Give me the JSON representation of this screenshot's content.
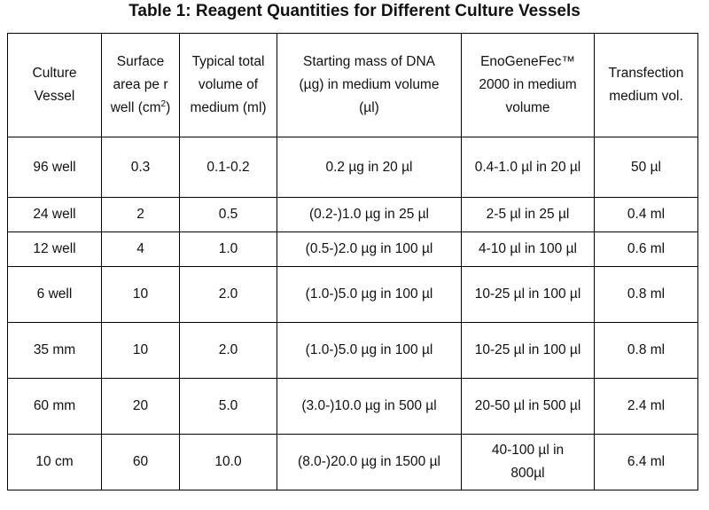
{
  "title": "Table 1: Reagent Quantities for Different Culture Vessels",
  "headers": {
    "vessel": "Culture Vessel",
    "surface_area": "Surface area pe r well (cm",
    "surface_area_sup": "2",
    "surface_area_close": ")",
    "volume": "Typical total volume of medium (ml)",
    "dna": "Starting mass of DNA (µg) in medium volume (µl)",
    "reagent": "EnoGeneFec™ 2000 in medium volume",
    "transfection": "Transfection medium vol."
  },
  "rows": [
    {
      "vessel": "96 well",
      "area": "0.3",
      "volume": "0.1-0.2",
      "dna": "0.2 µg in 20 µl",
      "reagent": "0.4-1.0 µl in 20 µl",
      "transfection": "50 µl"
    },
    {
      "vessel": "24 well",
      "area": "2",
      "volume": "0.5",
      "dna": "(0.2-)1.0 µg in 25 µl",
      "reagent": "2-5 µl in 25 µl",
      "transfection": "0.4 ml"
    },
    {
      "vessel": "12 well",
      "area": "4",
      "volume": "1.0",
      "dna": "(0.5-)2.0 µg in 100 µl",
      "reagent": "4-10 µl in 100 µl",
      "transfection": "0.6 ml"
    },
    {
      "vessel": "6 well",
      "area": "10",
      "volume": "2.0",
      "dna": "(1.0-)5.0 µg in 100 µl",
      "reagent": "10-25 µl in 100 µl",
      "transfection": "0.8 ml"
    },
    {
      "vessel": "35 mm",
      "area": "10",
      "volume": "2.0",
      "dna": "(1.0-)5.0 µg in 100 µl",
      "reagent": "10-25 µl in 100 µl",
      "transfection": "0.8 ml"
    },
    {
      "vessel": "60 mm",
      "area": "20",
      "volume": "5.0",
      "dna": "(3.0-)10.0 µg in 500 µl",
      "reagent": "20-50 µl in 500 µl",
      "transfection": "2.4 ml"
    },
    {
      "vessel": "10 cm",
      "area": "60",
      "volume": "10.0",
      "dna": "(8.0-)20.0 µg in 1500 µl",
      "reagent": "40-100 µl in 800µl",
      "transfection": "6.4 ml"
    }
  ]
}
